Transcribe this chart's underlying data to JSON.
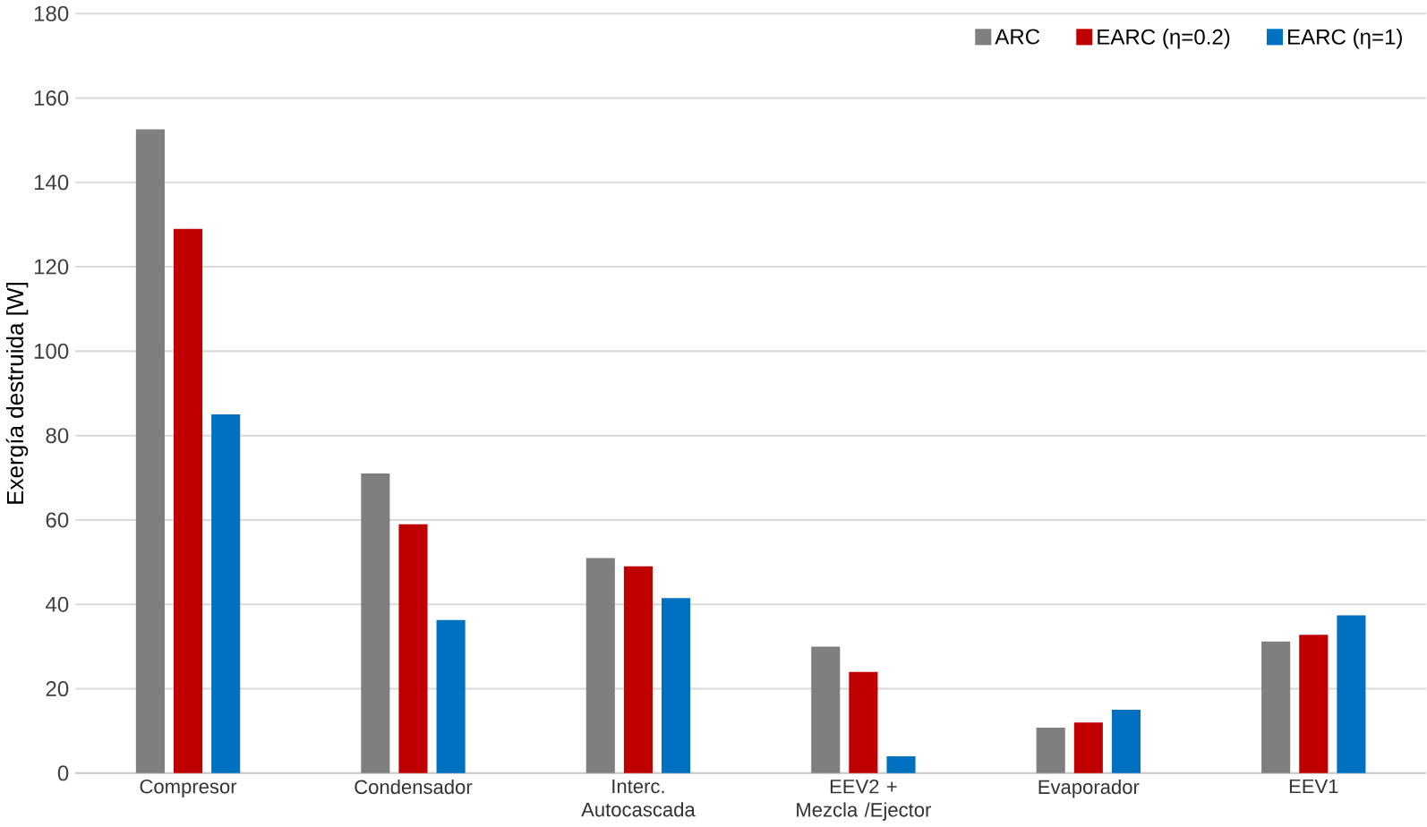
{
  "chart_data": {
    "type": "bar",
    "ylabel": "Exergía destruida [W]",
    "categories": [
      "Compresor",
      "Condensador",
      "Interc. Autocascada",
      "EEV2 + Mezcla /Ejector",
      "Evaporador",
      "EEV1"
    ],
    "series": [
      {
        "name": "ARC",
        "color": "#7f7f7f",
        "values": [
          152.6,
          71,
          51,
          30,
          10.8,
          31.2
        ]
      },
      {
        "name": "EARC (η=0.2)",
        "color": "#c00000",
        "values": [
          129,
          59,
          49,
          24,
          12,
          32.8
        ]
      },
      {
        "name": "EARC (η=1)",
        "color": "#0070c0",
        "values": [
          85,
          36.3,
          41.5,
          4,
          15,
          37.4
        ]
      }
    ],
    "ylim": [
      0,
      180
    ],
    "yticks": [
      0,
      20,
      40,
      60,
      80,
      100,
      120,
      140,
      160,
      180
    ],
    "grid": "y",
    "legend": "top right"
  }
}
